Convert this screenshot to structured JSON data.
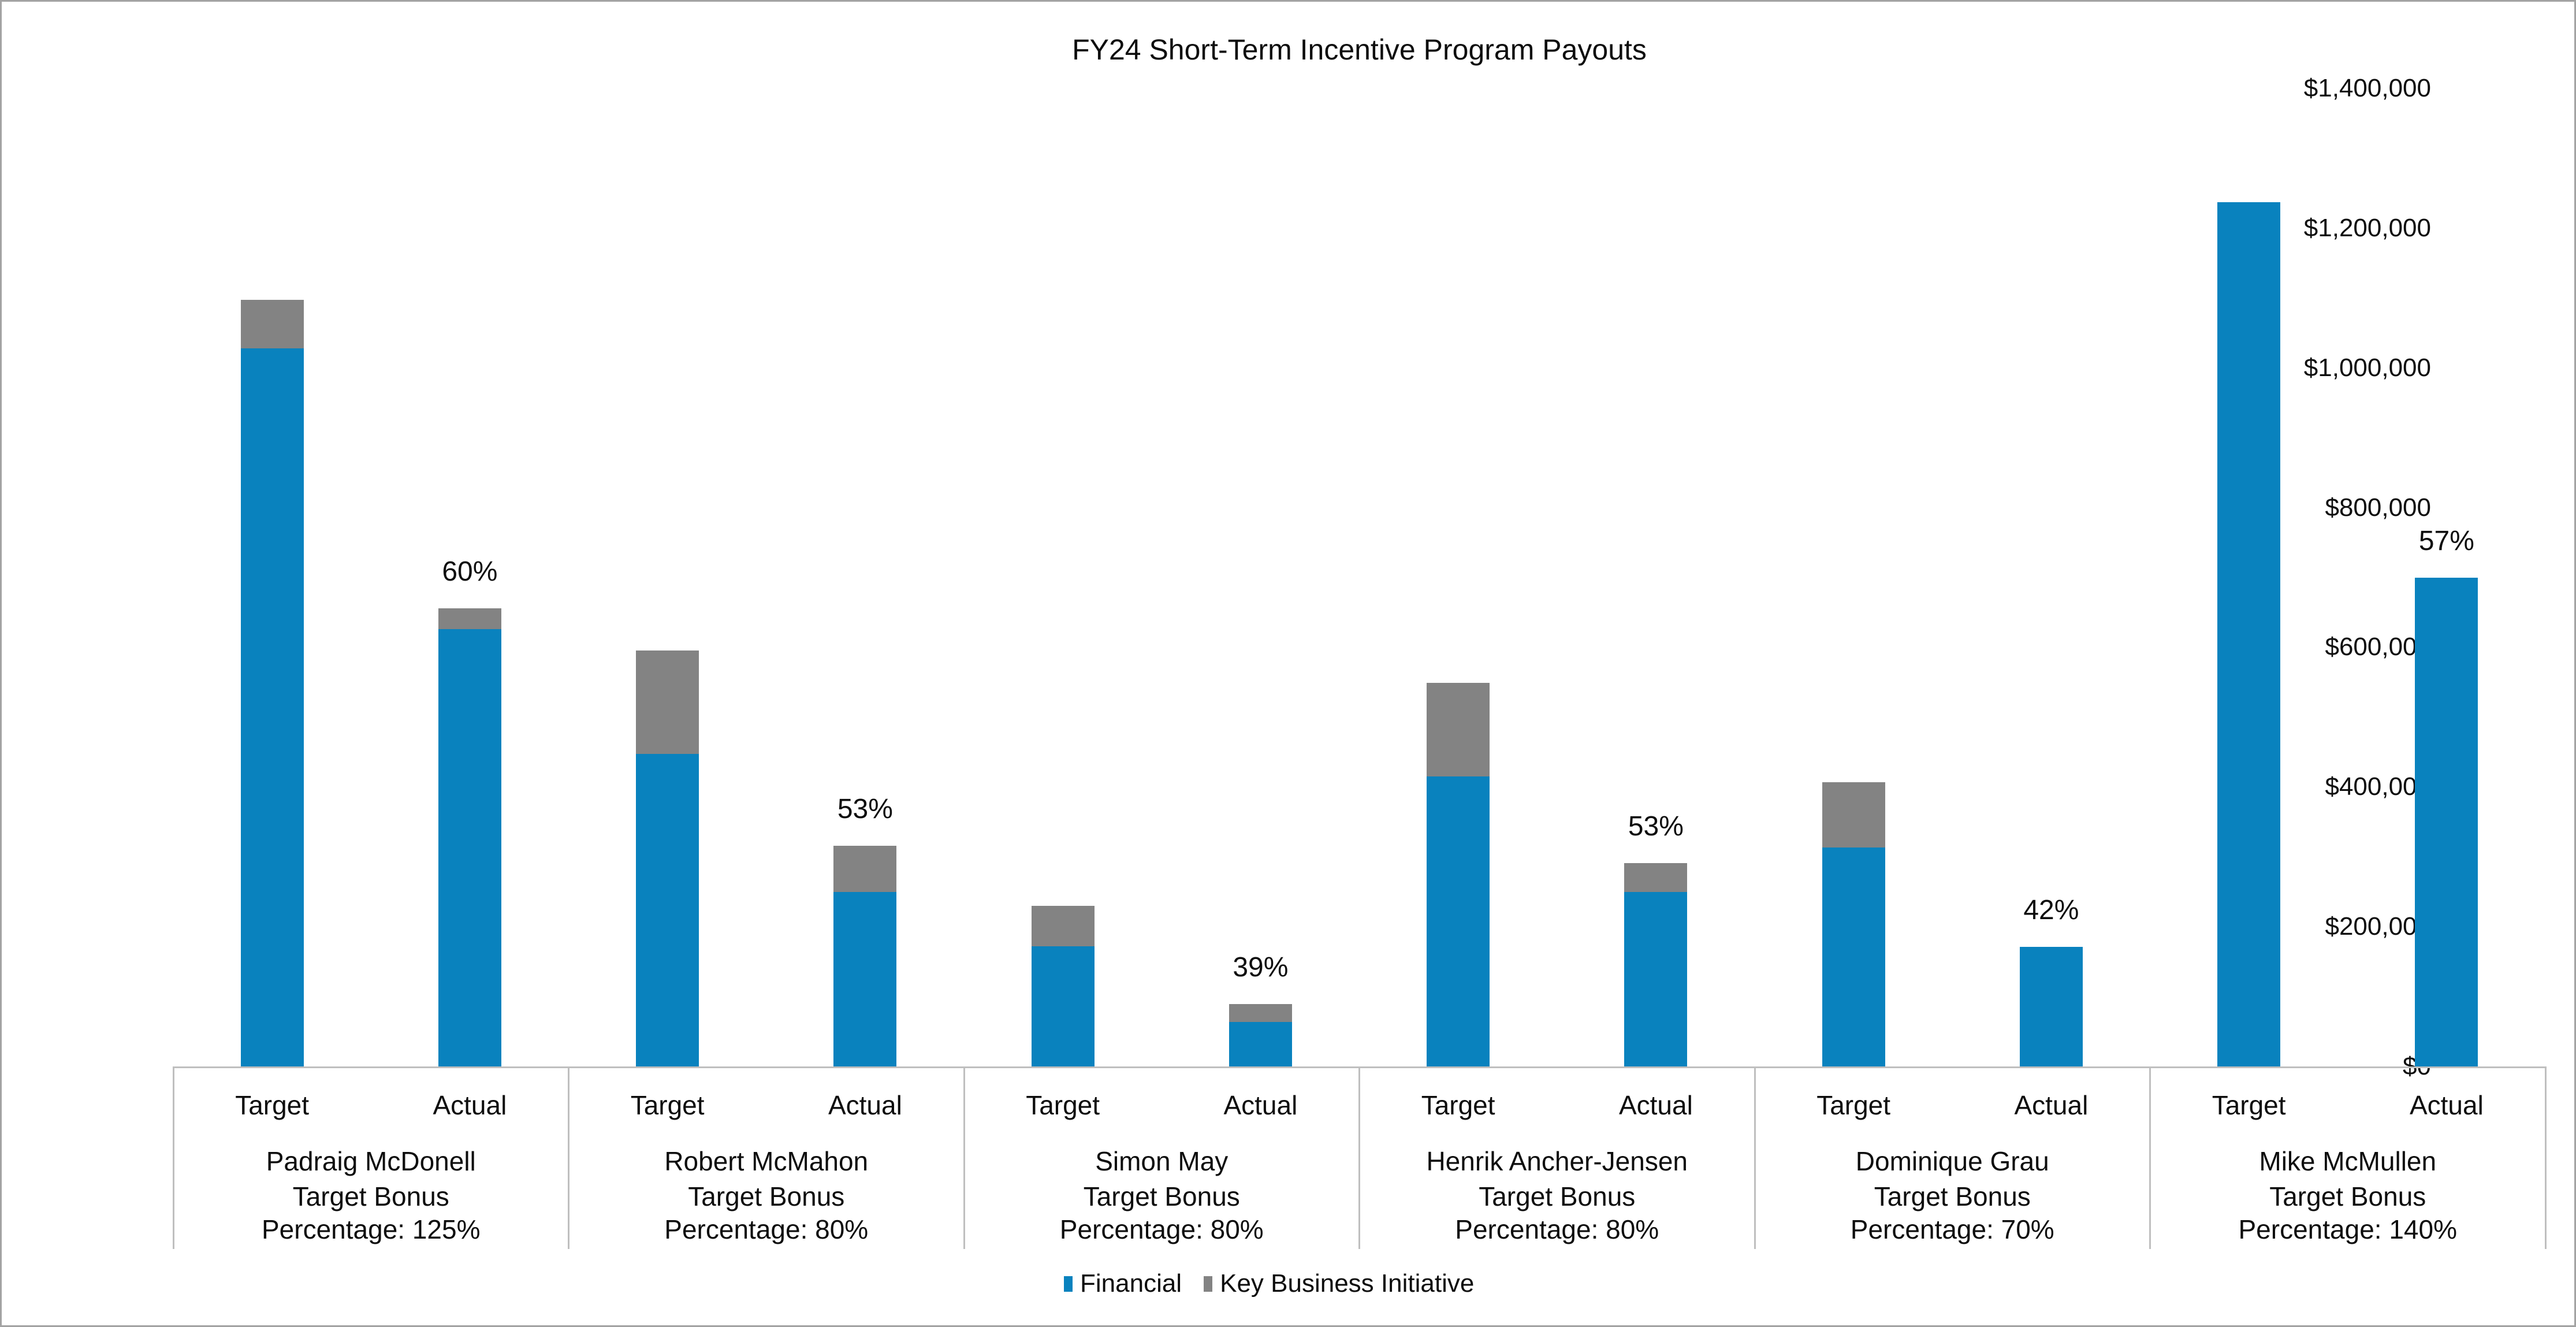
{
  "title": "FY24 Short-Term Incentive Program Payouts",
  "colors": {
    "financial": "#0982be",
    "kbi": "#838383",
    "axis_line": "#bfbfbf",
    "text": "#0d0d0d"
  },
  "legend": [
    {
      "label": "Financial",
      "series": "financial"
    },
    {
      "label": "Key Business Initiative",
      "series": "kbi"
    }
  ],
  "chart_data": {
    "type": "bar",
    "stacked": true,
    "title": "FY24 Short-Term Incentive Program Payouts",
    "xlabel": "",
    "ylabel": "",
    "ylim": [
      0,
      1400000
    ],
    "ytick_step": 200000,
    "grid": false,
    "legend_position": "bottom",
    "y_tick_labels_top_to_bottom": [
      "$1,400,000",
      "$1,200,000",
      "$1,000,000",
      "$800,000",
      "$600,000",
      "$400,000",
      "$200,000",
      "$0"
    ],
    "series": [
      "Financial",
      "Key Business Initiative"
    ],
    "bar_labels": [
      "Target",
      "Actual"
    ],
    "groups": [
      {
        "name": "Padraig McDonell",
        "bonus_line1": "Target Bonus",
        "bonus_line2": "Percentage: 125%",
        "bars": [
          {
            "label": "Target",
            "financial": 1028000,
            "kbi": 69000
          },
          {
            "label": "Actual",
            "financial": 626000,
            "kbi": 30000,
            "pct_label": "60%"
          }
        ]
      },
      {
        "name": "Robert McMahon",
        "bonus_line1": "Target Bonus",
        "bonus_line2": "Percentage: 80%",
        "bars": [
          {
            "label": "Target",
            "financial": 447000,
            "kbi": 148000
          },
          {
            "label": "Actual",
            "financial": 250000,
            "kbi": 66000,
            "pct_label": "53%"
          }
        ]
      },
      {
        "name": "Simon May",
        "bonus_line1": "Target Bonus",
        "bonus_line2": "Percentage: 80%",
        "bars": [
          {
            "label": "Target",
            "financial": 172000,
            "kbi": 58000
          },
          {
            "label": "Actual",
            "financial": 64000,
            "kbi": 25000,
            "pct_label": "39%"
          }
        ]
      },
      {
        "name": "Henrik Ancher-Jensen",
        "bonus_line1": "Target Bonus",
        "bonus_line2": "Percentage: 80%",
        "bars": [
          {
            "label": "Target",
            "financial": 415000,
            "kbi": 134000
          },
          {
            "label": "Actual",
            "financial": 250000,
            "kbi": 41000,
            "pct_label": "53%"
          }
        ]
      },
      {
        "name": "Dominique Grau",
        "bonus_line1": "Target Bonus",
        "bonus_line2": "Percentage: 70%",
        "bars": [
          {
            "label": "Target",
            "financial": 313000,
            "kbi": 94000
          },
          {
            "label": "Actual",
            "financial": 171000,
            "kbi": 0,
            "pct_label": "42%"
          }
        ]
      },
      {
        "name": "Mike McMullen",
        "bonus_line1": "Target Bonus",
        "bonus_line2": "Percentage: 140%",
        "bars": [
          {
            "label": "Target",
            "financial": 1237000,
            "kbi": 0
          },
          {
            "label": "Actual",
            "financial": 700000,
            "kbi": 0,
            "pct_label": "57%"
          }
        ]
      }
    ]
  }
}
